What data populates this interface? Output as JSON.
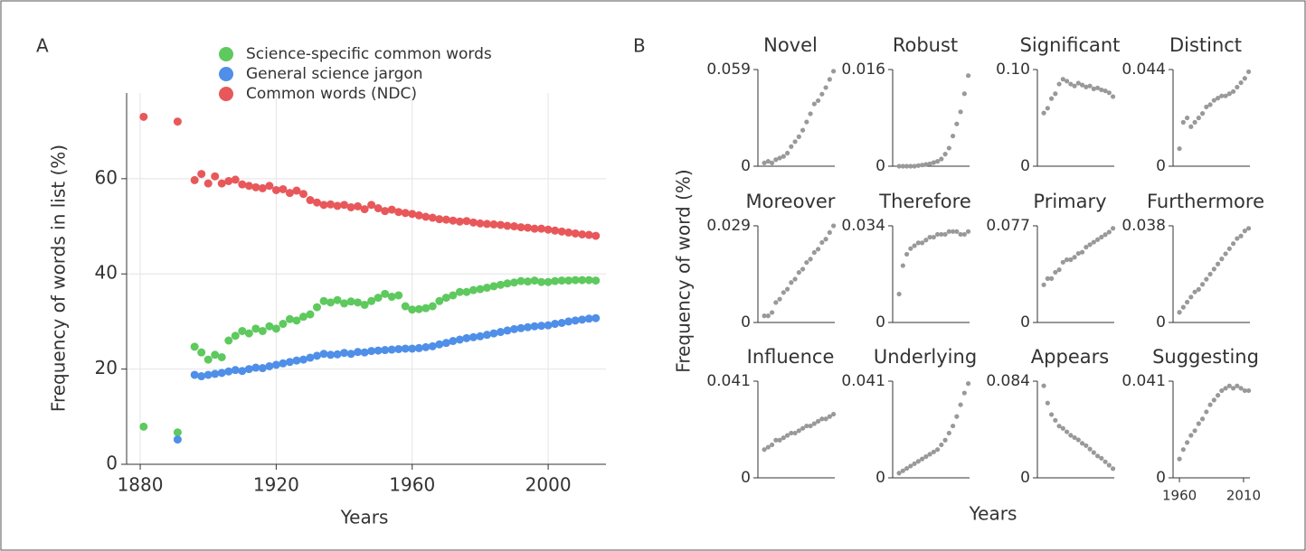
{
  "chart_data": [
    {
      "type": "scatter",
      "panel": "A",
      "xlabel": "Years",
      "ylabel": "Frequency of words in list (%)",
      "xlim": [
        1876,
        2017
      ],
      "xticks": [
        1880,
        1920,
        1960,
        2000
      ],
      "ylim": [
        0,
        78
      ],
      "yticks": [
        0,
        20,
        40,
        60
      ],
      "grid": true,
      "x": [
        1881,
        1891,
        1896,
        1898,
        1900,
        1902,
        1904,
        1906,
        1908,
        1910,
        1912,
        1914,
        1916,
        1918,
        1920,
        1922,
        1924,
        1926,
        1928,
        1930,
        1932,
        1934,
        1936,
        1938,
        1940,
        1942,
        1944,
        1946,
        1948,
        1950,
        1952,
        1954,
        1956,
        1958,
        1960,
        1962,
        1964,
        1966,
        1968,
        1970,
        1972,
        1974,
        1976,
        1978,
        1980,
        1982,
        1984,
        1986,
        1988,
        1990,
        1992,
        1994,
        1996,
        1998,
        2000,
        2002,
        2004,
        2006,
        2008,
        2010,
        2012,
        2014
      ],
      "series": [
        {
          "name": "Science-specific common words",
          "color": "#5ec95e",
          "values": [
            7.9,
            6.7,
            24.7,
            23.5,
            22,
            23,
            22.5,
            26,
            27,
            28,
            27.5,
            28.5,
            28,
            29,
            28.5,
            29.5,
            30.5,
            30.2,
            31,
            31.5,
            33,
            34.3,
            34,
            34.5,
            33.8,
            34.2,
            34,
            33.5,
            34.3,
            35,
            35.8,
            35.2,
            35.5,
            33.2,
            32.5,
            32.6,
            32.8,
            33.2,
            34.3,
            35,
            35.5,
            36.2,
            36.2,
            36.6,
            36.8,
            37.1,
            37.4,
            37.7,
            38,
            38.2,
            38.5,
            38.4,
            38.6,
            38.3,
            38.3,
            38.5,
            38.6,
            38.6,
            38.7,
            38.7,
            38.7,
            38.6
          ]
        },
        {
          "name": "General science jargon",
          "color": "#4f8fe8",
          "values": [
            null,
            5.2,
            18.8,
            18.5,
            18.8,
            19,
            19.2,
            19.5,
            19.8,
            19.6,
            20,
            20.3,
            20.2,
            20.6,
            20.9,
            21.2,
            21.5,
            21.8,
            22,
            22.4,
            22.8,
            23.2,
            23,
            23.1,
            23.4,
            23.2,
            23.6,
            23.5,
            23.8,
            23.9,
            24,
            24.1,
            24.2,
            24.3,
            24.3,
            24.4,
            24.6,
            24.8,
            25.2,
            25.5,
            25.9,
            26.2,
            26.5,
            26.7,
            26.9,
            27.2,
            27.5,
            27.8,
            28.1,
            28.4,
            28.6,
            28.8,
            29,
            29.1,
            29.2,
            29.5,
            29.7,
            30,
            30.2,
            30.4,
            30.6,
            30.7
          ]
        },
        {
          "name": "Common words (NDC)",
          "color": "#e8585a",
          "values": [
            73,
            72,
            59.7,
            61,
            59,
            60.5,
            59,
            59.5,
            59.8,
            58.8,
            58.5,
            58.2,
            58,
            58.5,
            57.6,
            57.8,
            57,
            57.5,
            56.8,
            55.5,
            55,
            54.5,
            54.6,
            54.3,
            54.5,
            54,
            54.2,
            53.6,
            54.5,
            53.8,
            53.2,
            53.5,
            53,
            52.8,
            52.6,
            52.3,
            52,
            51.8,
            51.5,
            51.4,
            51.2,
            51,
            51.1,
            50.8,
            50.6,
            50.5,
            50.4,
            50.3,
            50.1,
            50,
            49.8,
            49.7,
            49.5,
            49.5,
            49.3,
            49.1,
            48.9,
            48.7,
            48.5,
            48.3,
            48.2,
            48
          ]
        }
      ]
    },
    {
      "type": "small-multiples",
      "panel": "B",
      "xlabel": "Years",
      "ylabel": "Frequency of word (%)",
      "color": "#999999",
      "charts": [
        {
          "title": "Novel",
          "xlim": [
            1955,
            2015
          ],
          "ylim": [
            0,
            0.059
          ],
          "yticks": [
            0,
            0.059
          ],
          "x": [
            1960,
            1963,
            1966,
            1969,
            1972,
            1975,
            1978,
            1981,
            1984,
            1987,
            1990,
            1993,
            1996,
            1999,
            2002,
            2005,
            2008,
            2011,
            2014
          ],
          "values": [
            0.002,
            0.003,
            0.002,
            0.004,
            0.005,
            0.006,
            0.008,
            0.012,
            0.015,
            0.018,
            0.022,
            0.027,
            0.032,
            0.038,
            0.04,
            0.044,
            0.048,
            0.053,
            0.058
          ]
        },
        {
          "title": "Robust",
          "xlim": [
            1955,
            2015
          ],
          "ylim": [
            0,
            0.016
          ],
          "yticks": [
            0,
            0.016
          ],
          "x": [
            1960,
            1963,
            1966,
            1969,
            1972,
            1975,
            1978,
            1981,
            1984,
            1987,
            1990,
            1993,
            1996,
            1999,
            2002,
            2005,
            2008,
            2011,
            2014
          ],
          "values": [
            0,
            0,
            0,
            0,
            0,
            0.0001,
            0.0002,
            0.0003,
            0.0004,
            0.0006,
            0.0008,
            0.0012,
            0.002,
            0.003,
            0.005,
            0.007,
            0.009,
            0.012,
            0.015
          ]
        },
        {
          "title": "Significant",
          "xlim": [
            1955,
            2015
          ],
          "ylim": [
            0,
            0.1
          ],
          "yticks": [
            0,
            {
              "value": 0.1,
              "label": "0.10"
            }
          ],
          "x": [
            1960,
            1963,
            1966,
            1969,
            1972,
            1975,
            1978,
            1981,
            1984,
            1987,
            1990,
            1993,
            1996,
            1999,
            2002,
            2005,
            2008,
            2011,
            2014
          ],
          "values": [
            0.055,
            0.06,
            0.07,
            0.075,
            0.085,
            0.09,
            0.088,
            0.085,
            0.083,
            0.086,
            0.084,
            0.082,
            0.083,
            0.08,
            0.081,
            0.079,
            0.078,
            0.076,
            0.072
          ]
        },
        {
          "title": "Distinct",
          "xlim": [
            1955,
            2015
          ],
          "ylim": [
            0,
            0.044
          ],
          "yticks": [
            0,
            0.044
          ],
          "x": [
            1960,
            1963,
            1966,
            1969,
            1972,
            1975,
            1978,
            1981,
            1984,
            1987,
            1990,
            1993,
            1996,
            1999,
            2002,
            2005,
            2008,
            2011,
            2014
          ],
          "values": [
            0.008,
            0.02,
            0.022,
            0.018,
            0.02,
            0.022,
            0.024,
            0.027,
            0.028,
            0.03,
            0.031,
            0.032,
            0.032,
            0.033,
            0.034,
            0.036,
            0.038,
            0.04,
            0.043
          ]
        },
        {
          "title": "Moreover",
          "xlim": [
            1955,
            2015
          ],
          "ylim": [
            0,
            0.029
          ],
          "yticks": [
            0,
            0.029
          ],
          "x": [
            1960,
            1963,
            1966,
            1969,
            1972,
            1975,
            1978,
            1981,
            1984,
            1987,
            1990,
            1993,
            1996,
            1999,
            2002,
            2005,
            2008,
            2011,
            2014
          ],
          "values": [
            0.002,
            0.002,
            0.003,
            0.006,
            0.007,
            0.009,
            0.01,
            0.012,
            0.013,
            0.015,
            0.016,
            0.018,
            0.019,
            0.021,
            0.022,
            0.024,
            0.025,
            0.027,
            0.029
          ]
        },
        {
          "title": "Therefore",
          "xlim": [
            1955,
            2015
          ],
          "ylim": [
            0,
            0.034
          ],
          "yticks": [
            0,
            0.034
          ],
          "x": [
            1960,
            1963,
            1966,
            1969,
            1972,
            1975,
            1978,
            1981,
            1984,
            1987,
            1990,
            1993,
            1996,
            1999,
            2002,
            2005,
            2008,
            2011,
            2014
          ],
          "values": [
            0.01,
            0.02,
            0.024,
            0.026,
            0.027,
            0.028,
            0.028,
            0.029,
            0.03,
            0.03,
            0.031,
            0.031,
            0.031,
            0.032,
            0.032,
            0.032,
            0.031,
            0.031,
            0.032
          ]
        },
        {
          "title": "Primary",
          "xlim": [
            1955,
            2015
          ],
          "ylim": [
            0,
            0.077
          ],
          "yticks": [
            0,
            0.077
          ],
          "x": [
            1960,
            1963,
            1966,
            1969,
            1972,
            1975,
            1978,
            1981,
            1984,
            1987,
            1990,
            1993,
            1996,
            1999,
            2002,
            2005,
            2008,
            2011,
            2014
          ],
          "values": [
            0.03,
            0.035,
            0.035,
            0.04,
            0.042,
            0.048,
            0.05,
            0.05,
            0.052,
            0.055,
            0.056,
            0.06,
            0.062,
            0.064,
            0.066,
            0.068,
            0.07,
            0.072,
            0.075
          ]
        },
        {
          "title": "Furthermore",
          "xlim": [
            1955,
            2015
          ],
          "ylim": [
            0,
            0.038
          ],
          "yticks": [
            0,
            0.038
          ],
          "x": [
            1960,
            1963,
            1966,
            1969,
            1972,
            1975,
            1978,
            1981,
            1984,
            1987,
            1990,
            1993,
            1996,
            1999,
            2002,
            2005,
            2008,
            2011,
            2014
          ],
          "values": [
            0.004,
            0.006,
            0.008,
            0.01,
            0.012,
            0.013,
            0.015,
            0.017,
            0.019,
            0.021,
            0.023,
            0.025,
            0.027,
            0.029,
            0.031,
            0.033,
            0.034,
            0.036,
            0.037
          ]
        },
        {
          "title": "Influence",
          "xlim": [
            1955,
            2015
          ],
          "ylim": [
            0,
            0.041
          ],
          "yticks": [
            0,
            0.041
          ],
          "x": [
            1960,
            1963,
            1966,
            1969,
            1972,
            1975,
            1978,
            1981,
            1984,
            1987,
            1990,
            1993,
            1996,
            1999,
            2002,
            2005,
            2008,
            2011,
            2014
          ],
          "values": [
            0.012,
            0.013,
            0.014,
            0.016,
            0.016,
            0.017,
            0.018,
            0.019,
            0.019,
            0.02,
            0.021,
            0.022,
            0.022,
            0.023,
            0.024,
            0.025,
            0.025,
            0.026,
            0.027
          ]
        },
        {
          "title": "Underlying",
          "xlim": [
            1955,
            2015
          ],
          "ylim": [
            0,
            0.041
          ],
          "yticks": [
            0,
            0.041
          ],
          "x": [
            1960,
            1963,
            1966,
            1969,
            1972,
            1975,
            1978,
            1981,
            1984,
            1987,
            1990,
            1993,
            1996,
            1999,
            2002,
            2005,
            2008,
            2011,
            2014
          ],
          "values": [
            0.002,
            0.003,
            0.004,
            0.005,
            0.006,
            0.007,
            0.008,
            0.009,
            0.01,
            0.011,
            0.012,
            0.014,
            0.016,
            0.019,
            0.022,
            0.026,
            0.031,
            0.036,
            0.04
          ]
        },
        {
          "title": "Appears",
          "xlim": [
            1955,
            2015
          ],
          "ylim": [
            0,
            0.084
          ],
          "yticks": [
            0,
            0.084
          ],
          "x": [
            1960,
            1963,
            1966,
            1969,
            1972,
            1975,
            1978,
            1981,
            1984,
            1987,
            1990,
            1993,
            1996,
            1999,
            2002,
            2005,
            2008,
            2011,
            2014
          ],
          "values": [
            0.08,
            0.065,
            0.055,
            0.05,
            0.045,
            0.043,
            0.04,
            0.037,
            0.035,
            0.033,
            0.03,
            0.028,
            0.025,
            0.022,
            0.019,
            0.017,
            0.014,
            0.011,
            0.008
          ]
        },
        {
          "title": "Suggesting",
          "xlim": [
            1955,
            2015
          ],
          "ylim": [
            0,
            0.041
          ],
          "yticks": [
            0,
            0.041
          ],
          "xticks": [
            1960,
            2010
          ],
          "x": [
            1960,
            1963,
            1966,
            1969,
            1972,
            1975,
            1978,
            1981,
            1984,
            1987,
            1990,
            1993,
            1996,
            1999,
            2002,
            2005,
            2008,
            2011,
            2014
          ],
          "values": [
            0.008,
            0.012,
            0.015,
            0.018,
            0.02,
            0.023,
            0.025,
            0.028,
            0.031,
            0.033,
            0.035,
            0.037,
            0.038,
            0.039,
            0.038,
            0.039,
            0.038,
            0.037,
            0.037
          ]
        }
      ]
    }
  ]
}
